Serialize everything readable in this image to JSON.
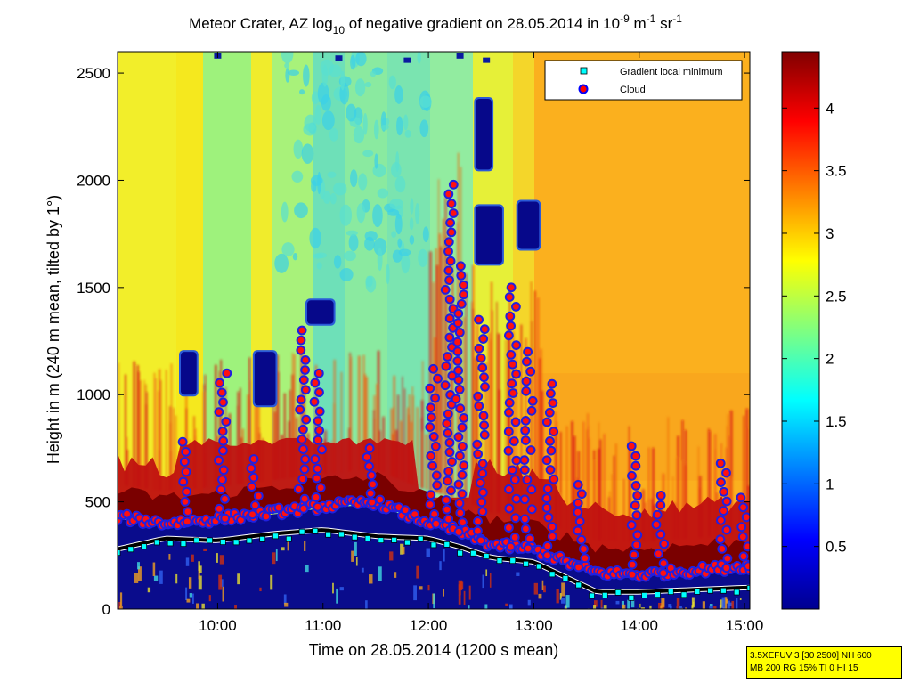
{
  "chart_data": {
    "type": "heatmap",
    "title": {
      "prefix": "Meteor Crater, AZ log",
      "sub": "10",
      "mid": " of negative gradient on 28.05.2014 in 10",
      "exp1": "-9",
      "unit1": " m",
      "exp2": "-1",
      "unit2": " sr",
      "exp3": "-1"
    },
    "xlabel": "Time on 28.05.2014 (1200 s mean)",
    "ylabel": "Height in m (240 m mean, tilted by 1°)",
    "xlim_hours": [
      9.05,
      15.05
    ],
    "ylim": [
      0,
      2600
    ],
    "x_ticks": [
      "10:00",
      "11:00",
      "12:00",
      "13:00",
      "14:00",
      "15:00"
    ],
    "y_ticks": [
      "0",
      "500",
      "1000",
      "1500",
      "2000",
      "2500"
    ],
    "colorbar": {
      "range": [
        0,
        4.45
      ],
      "ticks": [
        "0.5",
        "1",
        "1.5",
        "2",
        "2.5",
        "3",
        "3.5",
        "4"
      ],
      "colormap": "jet"
    },
    "legend": {
      "placement": "top-right",
      "entries": [
        {
          "label": "Gradient local minimum",
          "marker": "square",
          "color": "#00ffff"
        },
        {
          "label": "Cloud",
          "marker": "circle",
          "color": "#ff0000"
        }
      ]
    },
    "gradient_minimum_height": {
      "x_hours": [
        9.05,
        9.5,
        10.0,
        10.5,
        11.0,
        11.5,
        12.0,
        12.3,
        12.6,
        13.0,
        13.3,
        13.6,
        14.0,
        14.5,
        15.0
      ],
      "height_m": [
        280,
        330,
        320,
        350,
        370,
        340,
        330,
        290,
        240,
        220,
        150,
        80,
        80,
        90,
        100
      ]
    },
    "cloud_layer_top_height": {
      "x_hours": [
        9.05,
        9.5,
        10.0,
        10.5,
        11.0,
        11.5,
        11.9,
        12.3,
        12.6,
        13.0,
        13.3,
        13.6,
        14.0,
        14.5,
        15.0
      ],
      "height_m": [
        430,
        400,
        420,
        450,
        480,
        500,
        420,
        360,
        300,
        280,
        220,
        170,
        160,
        180,
        200
      ]
    },
    "cloud_columns": [
      {
        "x_hours": 9.7,
        "top_m": 780
      },
      {
        "x_hours": 10.05,
        "top_m": 1100
      },
      {
        "x_hours": 10.35,
        "top_m": 700
      },
      {
        "x_hours": 10.8,
        "top_m": 1300
      },
      {
        "x_hours": 10.95,
        "top_m": 1100
      },
      {
        "x_hours": 11.45,
        "top_m": 750
      },
      {
        "x_hours": 12.05,
        "top_m": 1120
      },
      {
        "x_hours": 12.2,
        "top_m": 1980
      },
      {
        "x_hours": 12.3,
        "top_m": 1600
      },
      {
        "x_hours": 12.5,
        "top_m": 1350
      },
      {
        "x_hours": 12.8,
        "top_m": 1500
      },
      {
        "x_hours": 12.95,
        "top_m": 1200
      },
      {
        "x_hours": 13.15,
        "top_m": 1050
      },
      {
        "x_hours": 13.45,
        "top_m": 580
      },
      {
        "x_hours": 13.95,
        "top_m": 760
      },
      {
        "x_hours": 14.2,
        "top_m": 530
      },
      {
        "x_hours": 14.8,
        "top_m": 680
      },
      {
        "x_hours": 15.0,
        "top_m": 520
      }
    ],
    "low_value_patches": [
      {
        "x_hours": [
          9.65,
          9.8
        ],
        "height_m": [
          1000,
          1200
        ]
      },
      {
        "x_hours": [
          10.35,
          10.55
        ],
        "height_m": [
          950,
          1200
        ]
      },
      {
        "x_hours": [
          10.85,
          11.1
        ],
        "height_m": [
          1330,
          1440
        ]
      },
      {
        "x_hours": [
          12.45,
          12.6
        ],
        "height_m": [
          2050,
          2380
        ]
      },
      {
        "x_hours": [
          12.45,
          12.7
        ],
        "height_m": [
          1610,
          1880
        ]
      },
      {
        "x_hours": [
          12.85,
          13.05
        ],
        "height_m": [
          1680,
          1900
        ]
      }
    ]
  },
  "info_box": {
    "line1": "3.5XEFUV 3 [30 2500] NH 600",
    "line2": "MB 200 RG 15% TI 0 HI 15"
  }
}
